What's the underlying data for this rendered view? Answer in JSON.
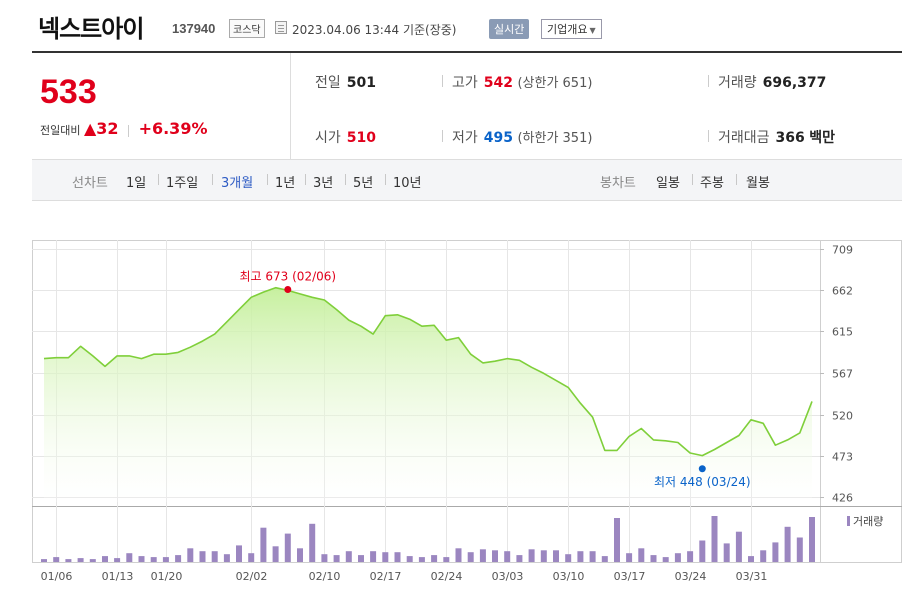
{
  "header": {
    "stock_name": "넥스트아이",
    "stock_code": "137940",
    "market": "코스닥",
    "datetime": "2023.04.06 13:44",
    "basis": "기준(장중)",
    "realtime_label": "실시간",
    "company_label": "기업개요"
  },
  "price": {
    "current": "533",
    "change_label": "전일대비",
    "change_arrow": "▲",
    "change_value": "32",
    "change_pct": "+6.39%"
  },
  "stats": {
    "prev_label": "전일",
    "prev_value": "501",
    "high_label": "고가",
    "high_value": "542",
    "upper_limit": "(상한가 651)",
    "volume_label": "거래량",
    "volume_value": "696,377",
    "open_label": "시가",
    "open_value": "510",
    "low_label": "저가",
    "low_value": "495",
    "lower_limit": "(하한가 351)",
    "amount_label": "거래대금",
    "amount_value": "366",
    "amount_unit": "백만"
  },
  "toolbar": {
    "line_chart_label": "선차트",
    "periods": [
      "1일",
      "1주일",
      "3개월",
      "1년",
      "3년",
      "5년",
      "10년"
    ],
    "active_period": "3개월",
    "candle_chart_label": "봉차트",
    "candle_periods": [
      "일봉",
      "주봉",
      "월봉"
    ]
  },
  "colors": {
    "up": "#e0001b",
    "down": "#0a63c9",
    "line": "#7fcf3a",
    "volume": "#9b86c0",
    "active_tab": "#2d5bc4"
  },
  "chart_data": {
    "type": "area",
    "y_ticks": [
      426,
      473,
      520,
      567,
      615,
      662,
      709
    ],
    "ylim": [
      420,
      715
    ],
    "x_ticks": [
      "01/06",
      "01/13",
      "01/20",
      "02/02",
      "02/10",
      "02/17",
      "02/24",
      "03/03",
      "03/10",
      "03/17",
      "03/24",
      "03/31"
    ],
    "x_tick_index": [
      1,
      6,
      10,
      17,
      23,
      28,
      33,
      38,
      43,
      48,
      53,
      58
    ],
    "series": [
      {
        "values": [
          584,
          585,
          585,
          598,
          587,
          575,
          587,
          587,
          584,
          589,
          589,
          591,
          597,
          604,
          612,
          626,
          640,
          654,
          660,
          665,
          662,
          658,
          654,
          651,
          640,
          628,
          621,
          612,
          633,
          634,
          629,
          621,
          622,
          605,
          608,
          589,
          579,
          581,
          584,
          582,
          574,
          567,
          559,
          551,
          533,
          517,
          479,
          479,
          495,
          504,
          491,
          490,
          488,
          476,
          473,
          480,
          488,
          496,
          514,
          510,
          485,
          491,
          499,
          535
        ]
      }
    ],
    "volume_label": "거래량",
    "volume": [
      3,
      5,
      3,
      4,
      3,
      6,
      4,
      9,
      6,
      5,
      5,
      7,
      14,
      11,
      11,
      8,
      17,
      9,
      35,
      16,
      29,
      14,
      39,
      8,
      7,
      11,
      7,
      11,
      10,
      10,
      6,
      5,
      7,
      5,
      14,
      10,
      13,
      12,
      11,
      7,
      13,
      12,
      12,
      8,
      11,
      11,
      6,
      45,
      9,
      14,
      7,
      5,
      9,
      11,
      22,
      47,
      19,
      31,
      6,
      12,
      20,
      36,
      25,
      46
    ],
    "annotations": [
      {
        "label": "최고 673 (02/06)",
        "x_index": 20,
        "y": 663,
        "kind": "high"
      },
      {
        "label": "최저 448 (03/24)",
        "x_index": 54,
        "y": 458,
        "kind": "low"
      }
    ]
  }
}
